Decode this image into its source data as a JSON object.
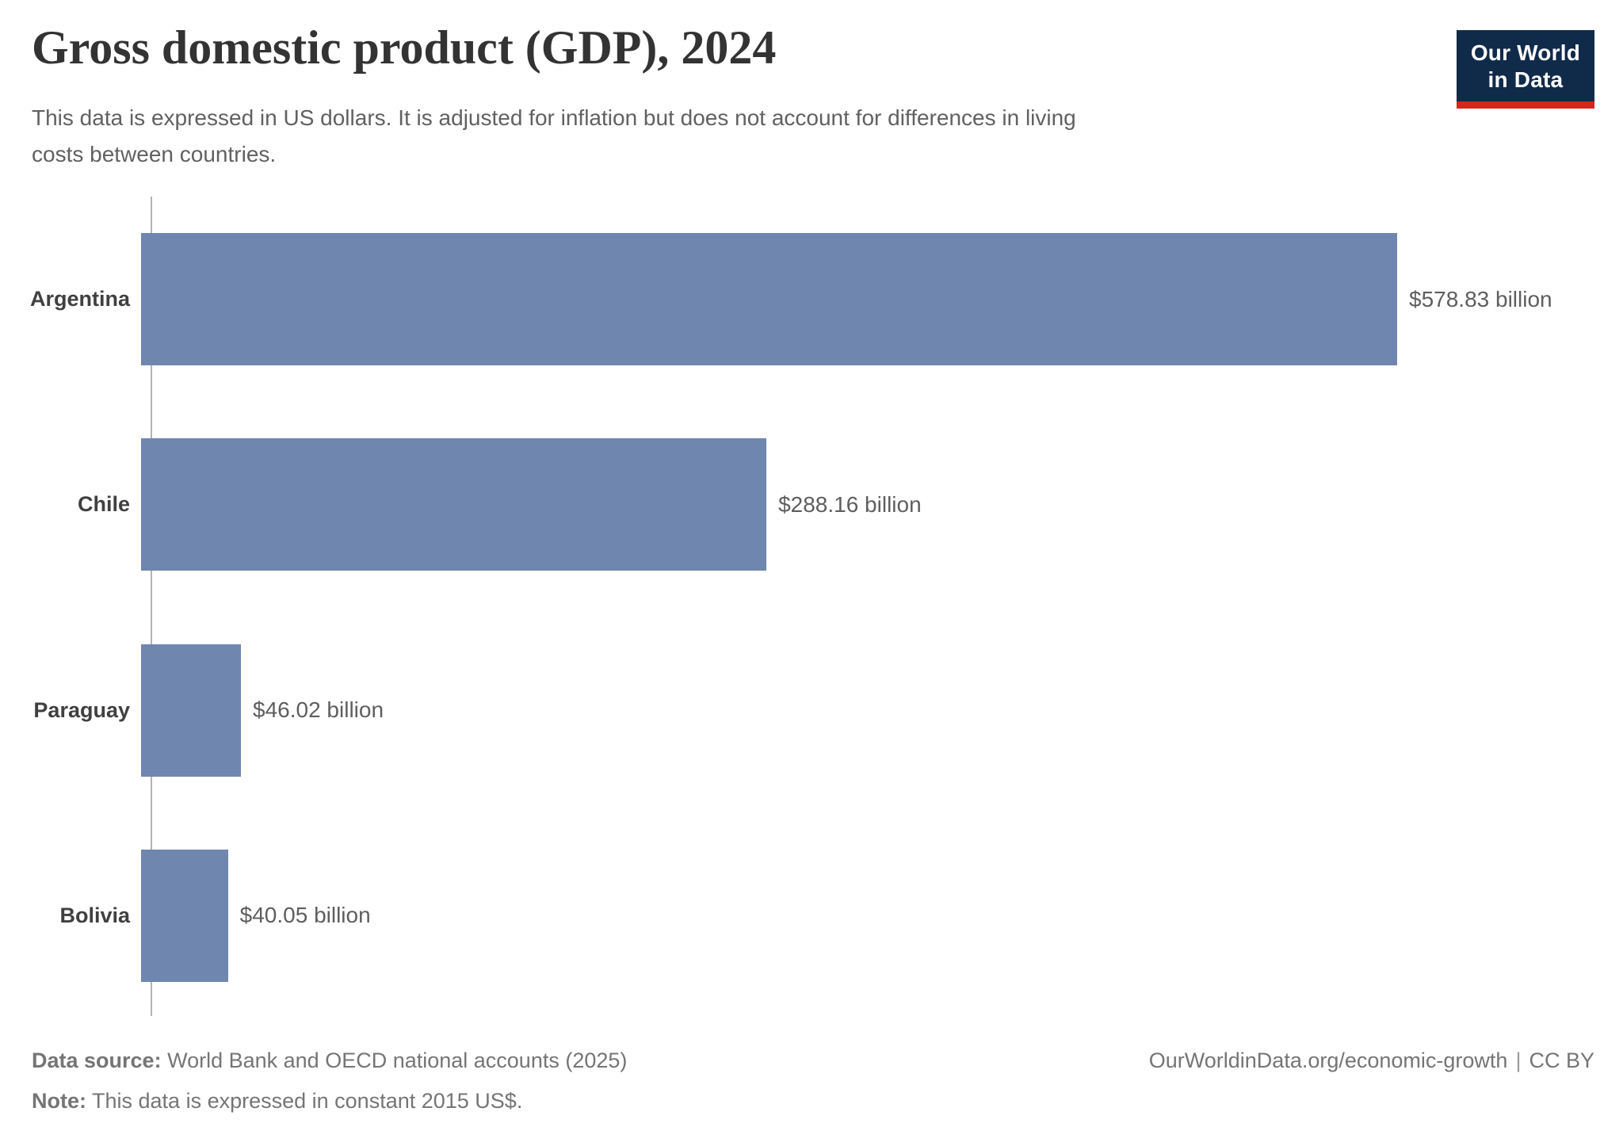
{
  "header": {
    "title": "Gross domestic product (GDP), 2024",
    "subtitle": "This data is expressed in US dollars. It is adjusted for inflation but does not account for differences in living costs between countries.",
    "logo": {
      "line1": "Our World",
      "line2": "in Data"
    }
  },
  "chart_data": {
    "type": "bar",
    "orientation": "horizontal",
    "title": "Gross domestic product (GDP), 2024",
    "categories": [
      "Argentina",
      "Chile",
      "Paraguay",
      "Bolivia"
    ],
    "values": [
      578.83,
      288.16,
      46.02,
      40.05
    ],
    "value_labels": [
      "$578.83 billion",
      "$288.16 billion",
      "$46.02 billion",
      "$40.05 billion"
    ],
    "unit": "billion US$ (constant 2015 US$)",
    "xlabel": "",
    "ylabel": "",
    "xlim": [
      0,
      600
    ],
    "grid": false,
    "legend": false,
    "bar_color": "#6f87ae"
  },
  "footer": {
    "datasource_label": "Data source:",
    "datasource_value": "World Bank and OECD national accounts (2025)",
    "note_label": "Note:",
    "note_value": "This data is expressed in constant 2015 US$.",
    "url": "OurWorldinData.org/economic-growth",
    "separator": "|",
    "license": "CC BY"
  },
  "colors": {
    "bar": "#6f87ae",
    "logo_bg": "#102a4a",
    "logo_red": "#d7251d",
    "axis": "#b3b3b3",
    "title_text": "#333333",
    "subtitle_text": "#616161",
    "footer_text": "#757575"
  }
}
